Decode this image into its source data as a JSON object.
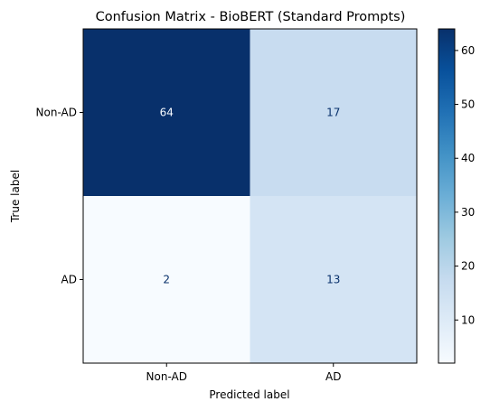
{
  "chart_data": {
    "type": "heatmap",
    "title": "Confusion Matrix - BioBERT (Standard Prompts)",
    "xlabel": "Predicted label",
    "ylabel": "True label",
    "x_categories": [
      "Non-AD",
      "AD"
    ],
    "y_categories": [
      "Non-AD",
      "AD"
    ],
    "values": [
      [
        64,
        17
      ],
      [
        2,
        13
      ]
    ],
    "colormap": "Blues",
    "colorbar": {
      "vmin": 2,
      "vmax": 64,
      "ticks": [
        10,
        20,
        30,
        40,
        50,
        60
      ]
    },
    "colors": {
      "low": "#f7fbff",
      "high": "#08306b",
      "text_on_dark": "#f7fbff",
      "text_on_light": "#08306b"
    }
  }
}
